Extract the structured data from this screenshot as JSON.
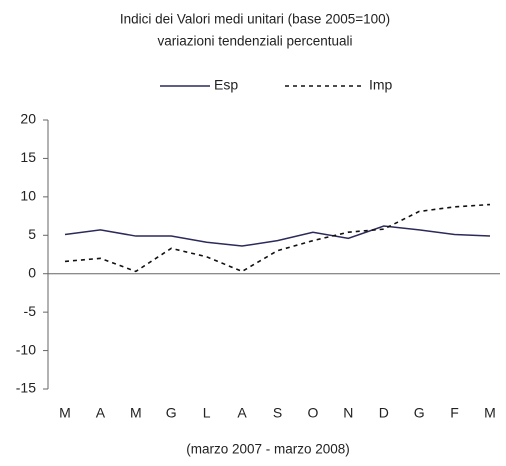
{
  "chart_data": {
    "type": "line",
    "title": "Indici dei Valori medi unitari (base 2005=100)",
    "subtitle": "variazioni tendenziali percentuali",
    "x_label": "(marzo 2007 - marzo 2008)",
    "categories": [
      "M",
      "A",
      "M",
      "G",
      "L",
      "A",
      "S",
      "O",
      "N",
      "D",
      "G",
      "F",
      "M"
    ],
    "series": [
      {
        "name": "Esp",
        "color": "#2b2a5a",
        "dash": false,
        "values": [
          5.1,
          5.7,
          4.9,
          4.9,
          4.1,
          3.6,
          4.3,
          5.4,
          4.6,
          6.2,
          5.7,
          5.1,
          4.9
        ]
      },
      {
        "name": "Imp",
        "color": "#111111",
        "dash": true,
        "values": [
          1.6,
          2.0,
          0.3,
          3.3,
          2.2,
          0.3,
          3.0,
          4.3,
          5.4,
          5.8,
          8.1,
          8.7,
          9.0
        ]
      }
    ],
    "ylim": [
      -15,
      20
    ],
    "yticks": [
      -15,
      -10,
      -5,
      0,
      5,
      10,
      15,
      20
    ],
    "legend": "top"
  }
}
